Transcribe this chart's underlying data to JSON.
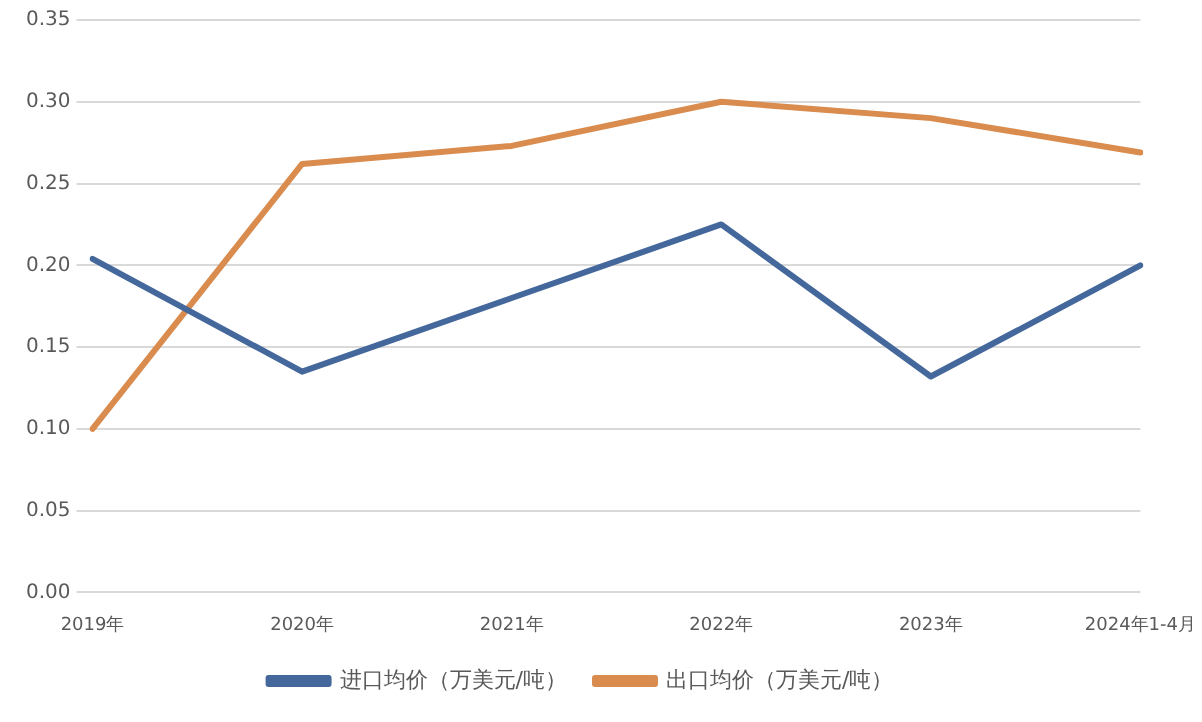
{
  "chart_data": {
    "type": "line",
    "categories": [
      "2019年",
      "2020年",
      "2021年",
      "2022年",
      "2023年",
      "2024年1-4月"
    ],
    "series": [
      {
        "name": "进口均价（万美元/吨）",
        "color": "#44689b",
        "values": [
          0.204,
          0.135,
          0.18,
          0.225,
          0.132,
          0.2
        ]
      },
      {
        "name": "出口均价（万美元/吨）",
        "color": "#d98c4e",
        "values": [
          0.1,
          0.262,
          0.273,
          0.3,
          0.29,
          0.269
        ]
      }
    ],
    "ylim": [
      0,
      0.35
    ],
    "yticks": [
      {
        "value": 0,
        "label": "0.00"
      },
      {
        "value": 0.05,
        "label": "0.05"
      },
      {
        "value": 0.1,
        "label": "0.10"
      },
      {
        "value": 0.15,
        "label": "0.15"
      },
      {
        "value": 0.2,
        "label": "0.20"
      },
      {
        "value": 0.25,
        "label": "0.25"
      },
      {
        "value": 0.3,
        "label": "0.30"
      },
      {
        "value": 0.35,
        "label": "0.35"
      }
    ],
    "grid": "y",
    "legend": "bottom",
    "marker": "none",
    "line_style": "solid"
  }
}
